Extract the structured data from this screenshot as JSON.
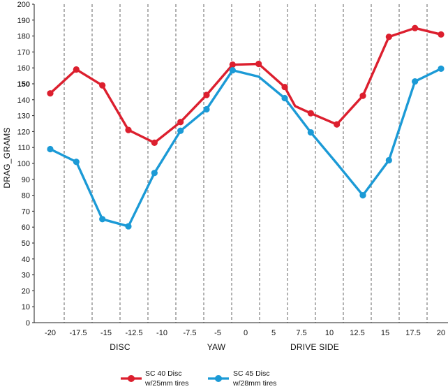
{
  "chart_data": {
    "type": "line",
    "title": "",
    "ylabel": "DRAG_GRAMS",
    "ylim": [
      0,
      200
    ],
    "y_ticks": [
      0,
      10,
      20,
      30,
      40,
      50,
      60,
      70,
      80,
      90,
      100,
      110,
      120,
      130,
      140,
      150,
      160,
      170,
      180,
      190,
      200
    ],
    "highlight_tick": 150,
    "x_ticks": [
      "-20",
      "-17.5",
      "-15",
      "-12.5",
      "-10",
      "-7.5",
      "-5",
      "0",
      "5",
      "7.5",
      "10",
      "12.5",
      "15",
      "17.5",
      "20"
    ],
    "x_group_labels": [
      "DISC",
      "YAW",
      "DRIVE SIDE"
    ],
    "grid": "vertical dashed",
    "legend_position": "bottom",
    "series": [
      {
        "name": "SC 40 Disc",
        "name_line2": "w/25mm tires",
        "color": "#dc1f2e",
        "x": [
          -20,
          -17.5,
          -15,
          -12.5,
          -10,
          -7.5,
          -5,
          0,
          5,
          7.5,
          10,
          12.5,
          15,
          17.5,
          20
        ],
        "points": [
          {
            "x": -20,
            "y": 144,
            "marker": true
          },
          {
            "x": -17.5,
            "y": 159,
            "marker": true
          },
          {
            "x": -15,
            "y": 149,
            "marker": true
          },
          {
            "x": -12.5,
            "y": 121,
            "marker": true
          },
          {
            "x": -10,
            "y": 113,
            "marker": true
          },
          {
            "x": -7.5,
            "y": 126,
            "marker": true
          },
          {
            "x": -5,
            "y": 143,
            "marker": true
          },
          {
            "x": -2.5,
            "y": 162,
            "marker": true
          },
          {
            "x": 0,
            "y": 162.5,
            "marker": true
          },
          {
            "x": 2.5,
            "y": 148,
            "marker": true
          },
          {
            "x": 3.5,
            "y": 136,
            "marker": false
          },
          {
            "x": 5,
            "y": 131.5,
            "marker": true
          },
          {
            "x": 7.5,
            "y": 124.5,
            "marker": true
          },
          {
            "x": 10,
            "y": 142.5,
            "marker": true
          },
          {
            "x": 12.5,
            "y": 179.5,
            "marker": true
          },
          {
            "x": 15,
            "y": 185,
            "marker": true
          },
          {
            "x": 17.5,
            "y": 181,
            "marker": true
          }
        ]
      },
      {
        "name": "SC 45 Disc",
        "name_line2": "w/28mm tires",
        "color": "#1b9ad6",
        "points": [
          {
            "x": -20,
            "y": 109,
            "marker": true
          },
          {
            "x": -17.5,
            "y": 101,
            "marker": true
          },
          {
            "x": -15,
            "y": 65,
            "marker": true
          },
          {
            "x": -12.5,
            "y": 60.5,
            "marker": true
          },
          {
            "x": -10,
            "y": 94,
            "marker": true
          },
          {
            "x": -7.5,
            "y": 120.5,
            "marker": true
          },
          {
            "x": -5,
            "y": 134,
            "marker": true
          },
          {
            "x": -2.5,
            "y": 158.5,
            "marker": true
          },
          {
            "x": 0,
            "y": 154.5,
            "marker": false
          },
          {
            "x": 2.5,
            "y": 141,
            "marker": true
          },
          {
            "x": 5,
            "y": 119.5,
            "marker": true
          },
          {
            "x": 7.5,
            "y": 100,
            "marker": false
          },
          {
            "x": 10,
            "y": 80,
            "marker": true
          },
          {
            "x": 12.5,
            "y": 102,
            "marker": true
          },
          {
            "x": 15,
            "y": 151.5,
            "marker": true
          },
          {
            "x": 17.5,
            "y": 159.5,
            "marker": true
          }
        ]
      }
    ]
  }
}
